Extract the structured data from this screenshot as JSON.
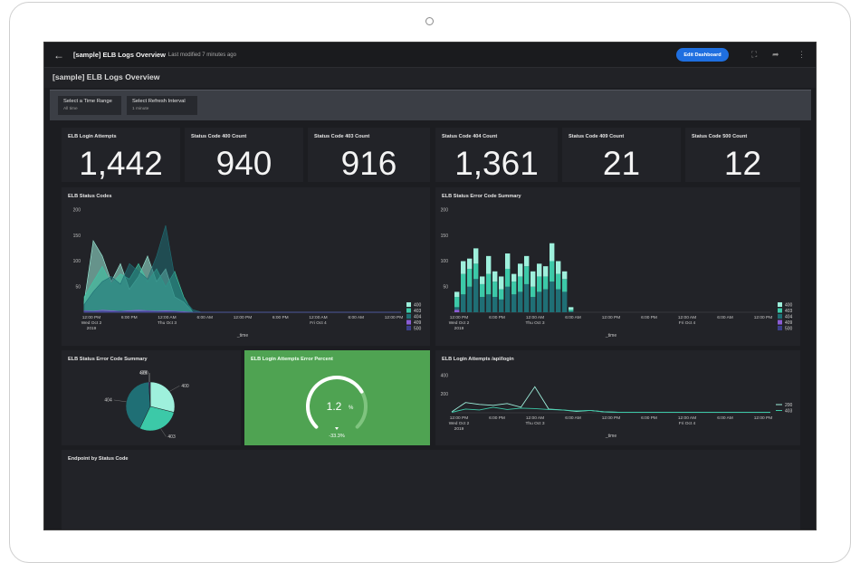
{
  "header": {
    "back_label": "←",
    "title": "[sample] ELB Logs Overview",
    "modified": "Last modified 7 minutes ago",
    "edit_label": "Edit Dashboard",
    "fullscreen_label": "⛶",
    "share_label": "➦",
    "more_label": "⋮"
  },
  "dashboard": {
    "title": "[sample] ELB Logs Overview"
  },
  "filters": [
    {
      "label": "Select a Time Range",
      "value": "All time"
    },
    {
      "label": "Select Refresh Interval",
      "value": "1 minute"
    }
  ],
  "stats": [
    {
      "title": "ELB Login Attempts",
      "value": "1,442"
    },
    {
      "title": "Status Code 400 Count",
      "value": "940"
    },
    {
      "title": "Status Code 403 Count",
      "value": "916"
    },
    {
      "title": "Status Code 404 Count",
      "value": "1,361"
    },
    {
      "title": "Status Code 409 Count",
      "value": "21"
    },
    {
      "title": "Status Code 500 Count",
      "value": "12"
    }
  ],
  "panels": {
    "status_codes": "ELB Status Codes",
    "error_summary_bar": "ELB Status Error Code Summary",
    "error_summary_pie": "ELB Status Error Code Summary",
    "error_percent": "ELB Login Attempts Error Percent",
    "login_attempts": "ELB Login Attempts /api/login",
    "endpoint": "Endpoint by Status Code"
  },
  "gauge": {
    "value": "1.2",
    "unit": "%",
    "delta": "-33.3%",
    "fraction": 0.72
  },
  "colors": {
    "c400": "#9ef0dc",
    "c403": "#3cc9a8",
    "c404": "#1f6f75",
    "c409": "#8b5cd6",
    "c500": "#3b3f8c"
  },
  "chart_data": [
    {
      "type": "area",
      "title": "ELB Status Codes",
      "xlabel": "_time",
      "ylabel": "",
      "ylim": [
        0,
        200
      ],
      "yticks": [
        "200",
        "150",
        "100",
        "50"
      ],
      "xticks": [
        "12:00 PM|Wed Oct 2|2019",
        "6:00 PM",
        "12:00 AM|Thu Oct 3",
        "6:00 AM",
        "12:00 PM",
        "6:00 PM",
        "12:00 AM|Fri Oct 4",
        "6:00 AM",
        "12:00 PM"
      ],
      "series": [
        {
          "name": "400",
          "color": "#9ef0dc",
          "values": [
            20,
            140,
            110,
            60,
            95,
            45,
            70,
            110,
            60,
            85,
            30,
            20,
            0,
            0,
            0,
            0,
            0,
            0,
            0,
            0,
            0,
            0,
            0,
            0,
            0,
            0,
            0,
            0,
            0,
            0,
            0,
            0,
            0,
            0,
            0,
            0
          ]
        },
        {
          "name": "403",
          "color": "#3cc9a8",
          "values": [
            30,
            60,
            90,
            55,
            75,
            65,
            95,
            60,
            85,
            50,
            80,
            30,
            0,
            0,
            0,
            0,
            0,
            0,
            0,
            0,
            0,
            0,
            0,
            0,
            0,
            0,
            0,
            0,
            0,
            0,
            0,
            0,
            0,
            0,
            0,
            0
          ]
        },
        {
          "name": "404",
          "color": "#1f6f75",
          "values": [
            15,
            40,
            60,
            70,
            55,
            95,
            80,
            65,
            110,
            170,
            70,
            25,
            5,
            0,
            0,
            0,
            0,
            0,
            0,
            0,
            0,
            0,
            0,
            0,
            0,
            0,
            0,
            0,
            0,
            0,
            0,
            0,
            0,
            0,
            0,
            0
          ]
        },
        {
          "name": "409",
          "color": "#8b5cd6",
          "values": [
            3,
            2,
            4,
            3,
            2,
            3,
            4,
            3,
            2,
            3,
            2,
            1,
            0,
            0,
            0,
            0,
            0,
            0,
            0,
            0,
            0,
            0,
            0,
            0,
            0,
            0,
            0,
            0,
            0,
            0,
            0,
            0,
            0,
            0,
            0,
            0
          ]
        },
        {
          "name": "500",
          "color": "#3b3f8c",
          "values": [
            2,
            1,
            2,
            1,
            2,
            1,
            1,
            2,
            1,
            1,
            1,
            0,
            0,
            0,
            0,
            0,
            0,
            0,
            0,
            0,
            0,
            0,
            0,
            0,
            0,
            0,
            0,
            0,
            0,
            0,
            0,
            0,
            0,
            0,
            0,
            0
          ]
        }
      ]
    },
    {
      "type": "bar",
      "title": "ELB Status Error Code Summary",
      "xlabel": "_time",
      "ylabel": "",
      "ylim": [
        0,
        200
      ],
      "yticks": [
        "200",
        "150",
        "100",
        "50"
      ],
      "xticks": [
        "12:00 PM|Wed Oct 2|2019",
        "6:00 PM",
        "12:00 AM|Thu Oct 3",
        "6:00 AM",
        "12:00 PM",
        "6:00 PM",
        "12:00 AM|Fri Oct 4",
        "6:00 AM",
        "12:00 PM"
      ],
      "series": [
        {
          "name": "400",
          "color": "#9ef0dc",
          "values": [
            10,
            25,
            20,
            30,
            15,
            35,
            20,
            25,
            30,
            15,
            25,
            20,
            30,
            25,
            20,
            35,
            25,
            15,
            5
          ]
        },
        {
          "name": "403",
          "color": "#3cc9a8",
          "values": [
            20,
            40,
            35,
            30,
            25,
            40,
            30,
            20,
            35,
            25,
            30,
            35,
            20,
            30,
            25,
            40,
            30,
            25,
            3
          ]
        },
        {
          "name": "404",
          "color": "#1f6f75",
          "values": [
            5,
            35,
            50,
            65,
            30,
            35,
            30,
            25,
            50,
            35,
            40,
            55,
            30,
            40,
            45,
            60,
            45,
            40,
            2
          ]
        },
        {
          "name": "409",
          "color": "#8b5cd6",
          "values": [
            5,
            0,
            0,
            0,
            0,
            0,
            0,
            0,
            0,
            0,
            0,
            0,
            0,
            0,
            0,
            0,
            0,
            0,
            0
          ]
        },
        {
          "name": "500",
          "color": "#3b3f8c",
          "values": [
            0,
            0,
            0,
            0,
            0,
            0,
            0,
            0,
            0,
            0,
            0,
            0,
            0,
            0,
            0,
            0,
            0,
            0,
            0
          ]
        }
      ]
    },
    {
      "type": "pie",
      "title": "ELB Status Error Code Summary",
      "categories": [
        "400",
        "403",
        "404",
        "409",
        "500"
      ],
      "values": [
        940,
        916,
        1361,
        21,
        12
      ],
      "colors": [
        "#9ef0dc",
        "#3cc9a8",
        "#1f6f75",
        "#8b5cd6",
        "#3b3f8c"
      ]
    },
    {
      "type": "line",
      "title": "ELB Login Attempts /api/login",
      "xlabel": "_time",
      "ylabel": "",
      "ylim": [
        0,
        400
      ],
      "yticks": [
        "400",
        "200"
      ],
      "xticks": [
        "12:00 PM|Wed Oct 2|2019",
        "6:00 PM",
        "12:00 AM|Thu Oct 3",
        "6:00 AM",
        "12:00 PM",
        "6:00 PM",
        "12:00 AM|Fri Oct 4",
        "6:00 AM",
        "12:00 PM"
      ],
      "series": [
        {
          "name": "200",
          "color": "#9ef0dc",
          "values": [
            10,
            110,
            90,
            80,
            100,
            60,
            280,
            40,
            30,
            15,
            25,
            10,
            5,
            5,
            5,
            5,
            5,
            5,
            5,
            5,
            5,
            5,
            5,
            5
          ]
        },
        {
          "name": "403",
          "color": "#3cc9a8",
          "values": [
            5,
            40,
            30,
            60,
            35,
            50,
            45,
            35,
            30,
            20,
            25,
            10,
            5,
            5,
            5,
            5,
            5,
            5,
            5,
            5,
            5,
            5,
            5,
            5
          ]
        }
      ]
    }
  ]
}
